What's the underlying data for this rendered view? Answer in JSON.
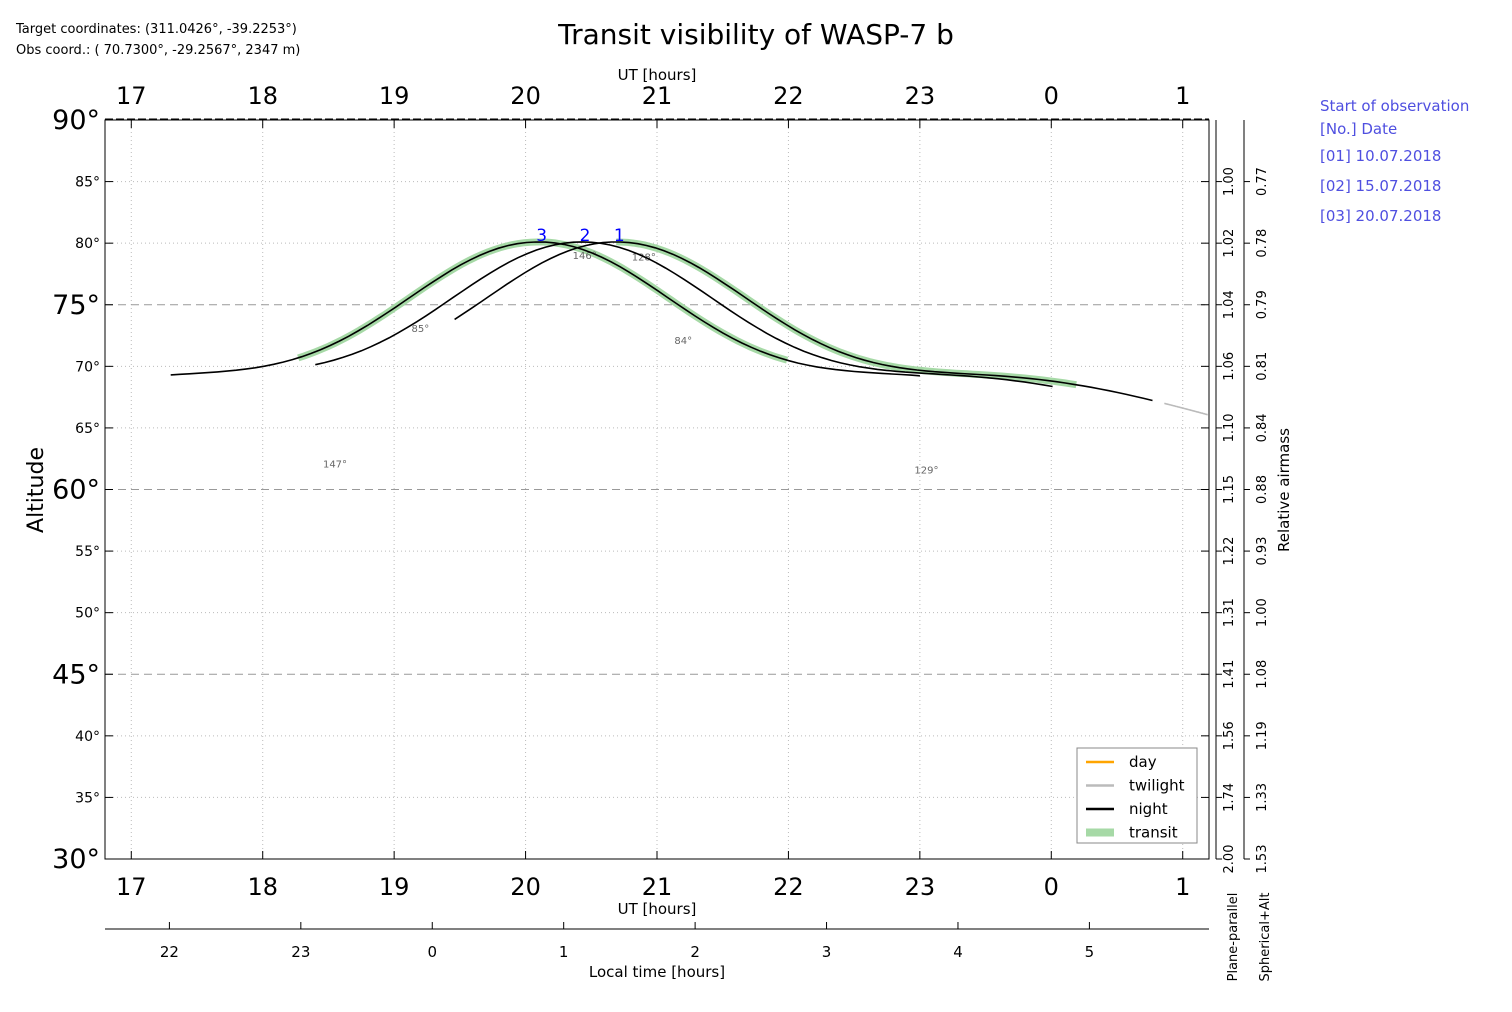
{
  "header": {
    "target_coordinates": "Target coordinates: (311.0426°, -39.2253°)",
    "observatory_coordinates": "Obs coord.: ( 70.7300°, -29.2567°, 2347 m)"
  },
  "observation_list": {
    "title": "Start of observation",
    "column_header": "[No.]  Date",
    "entries": [
      {
        "no": "1",
        "label": "[01]  10.07.2018"
      },
      {
        "no": "2",
        "label": "[02]  15.07.2018"
      },
      {
        "no": "3",
        "label": "[03]  20.07.2018"
      }
    ]
  },
  "colors": {
    "day": "#ffa500",
    "twilight": "#bbbbbb",
    "night": "#000000",
    "transit": "#a6d9a6",
    "number_labels": "#0000ff",
    "observation_list": "#4f4fe0"
  },
  "chart_data": {
    "type": "line",
    "title": "Transit visibility of WASP-7 b",
    "ylabel": "Altitude",
    "ylabel_right": "Relative airmass",
    "xlabel_top": "UT [hours]",
    "xlabel_bottom": "UT [hours]",
    "xlabel_local": "Local time [hours]",
    "ylim": [
      30,
      90
    ],
    "xlim_ut": [
      16.8,
      25.2
    ],
    "ut_ticks": [
      {
        "v": 17,
        "label": "17"
      },
      {
        "v": 18,
        "label": "18"
      },
      {
        "v": 19,
        "label": "19"
      },
      {
        "v": 20,
        "label": "20"
      },
      {
        "v": 21,
        "label": "21"
      },
      {
        "v": 22,
        "label": "22"
      },
      {
        "v": 23,
        "label": "23"
      },
      {
        "v": 24,
        "label": "0"
      },
      {
        "v": 25,
        "label": "1"
      }
    ],
    "local_ticks": [
      {
        "v": 17.29,
        "label": "22"
      },
      {
        "v": 18.29,
        "label": "23"
      },
      {
        "v": 19.29,
        "label": "0"
      },
      {
        "v": 20.29,
        "label": "1"
      },
      {
        "v": 21.29,
        "label": "2"
      },
      {
        "v": 22.29,
        "label": "3"
      },
      {
        "v": 23.29,
        "label": "4"
      },
      {
        "v": 24.29,
        "label": "5"
      }
    ],
    "y_ticks": [
      {
        "v": 90,
        "label": "90°",
        "major": true
      },
      {
        "v": 85,
        "label": "85°",
        "major": false
      },
      {
        "v": 80,
        "label": "80°",
        "major": false
      },
      {
        "v": 75,
        "label": "75°",
        "major": true
      },
      {
        "v": 70,
        "label": "70°",
        "major": false
      },
      {
        "v": 65,
        "label": "65°",
        "major": false
      },
      {
        "v": 60,
        "label": "60°",
        "major": true
      },
      {
        "v": 55,
        "label": "55°",
        "major": false
      },
      {
        "v": 50,
        "label": "50°",
        "major": false
      },
      {
        "v": 45,
        "label": "45°",
        "major": true
      },
      {
        "v": 40,
        "label": "40°",
        "major": false
      },
      {
        "v": 35,
        "label": "35°",
        "major": false
      },
      {
        "v": 30,
        "label": "30°",
        "major": true
      }
    ],
    "airmass_plane_parallel": [
      {
        "alt": 85,
        "label": "1.00"
      },
      {
        "alt": 80,
        "label": "1.02"
      },
      {
        "alt": 75,
        "label": "1.04"
      },
      {
        "alt": 70,
        "label": "1.06"
      },
      {
        "alt": 65,
        "label": "1.10"
      },
      {
        "alt": 60,
        "label": "1.15"
      },
      {
        "alt": 55,
        "label": "1.22"
      },
      {
        "alt": 50,
        "label": "1.31"
      },
      {
        "alt": 45,
        "label": "1.41"
      },
      {
        "alt": 40,
        "label": "1.56"
      },
      {
        "alt": 35,
        "label": "1.74"
      },
      {
        "alt": 30,
        "label": "2.00"
      }
    ],
    "airmass_spherical_alt": [
      {
        "alt": 85,
        "label": "0.77"
      },
      {
        "alt": 80,
        "label": "0.78"
      },
      {
        "alt": 75,
        "label": "0.79"
      },
      {
        "alt": 70,
        "label": "0.81"
      },
      {
        "alt": 65,
        "label": "0.84"
      },
      {
        "alt": 60,
        "label": "0.88"
      },
      {
        "alt": 55,
        "label": "0.93"
      },
      {
        "alt": 50,
        "label": "1.00"
      },
      {
        "alt": 45,
        "label": "1.08"
      },
      {
        "alt": 40,
        "label": "1.19"
      },
      {
        "alt": 35,
        "label": "1.33"
      },
      {
        "alt": 30,
        "label": "1.53"
      }
    ],
    "airmass_axis_labels": {
      "plane_parallel": "Plane-parallel",
      "spherical_alt": "Spherical+Alt"
    },
    "legend": {
      "position": "bottom-right",
      "entries": [
        {
          "key": "day",
          "label": "day"
        },
        {
          "key": "twilight",
          "label": "twilight"
        },
        {
          "key": "night",
          "label": "night"
        },
        {
          "key": "transit",
          "label": "transit"
        }
      ]
    },
    "grid": true,
    "curve_model": {
      "peak_alt": 80.1
    },
    "series": [
      {
        "no": "1",
        "culmination_ut": 20.69,
        "night_ut": [
          19.46,
          24.77
        ],
        "twilight_ut": [
          24.86,
          25.19
        ],
        "transit_ut": [
          20.69,
          24.19
        ],
        "azimuth_labels": [
          {
            "ut": 20.9,
            "alt": 78.6,
            "label": "128°"
          },
          {
            "ut": 23.05,
            "alt": 61.3,
            "label": "129°"
          }
        ]
      },
      {
        "no": "2",
        "culmination_ut": 20.43,
        "night_ut": [
          18.4,
          24.01
        ],
        "twilight_ut": [],
        "transit_ut": [],
        "azimuth_labels": [
          {
            "ut": 20.45,
            "alt": 78.7,
            "label": "146°"
          },
          {
            "ut": 18.55,
            "alt": 61.8,
            "label": "147°"
          }
        ]
      },
      {
        "no": "3",
        "culmination_ut": 20.1,
        "night_ut": [
          17.3,
          23.0
        ],
        "twilight_ut": [],
        "transit_ut": [
          18.27,
          21.99
        ],
        "azimuth_labels": [
          {
            "ut": 19.2,
            "alt": 72.8,
            "label": "85°"
          },
          {
            "ut": 21.2,
            "alt": 71.8,
            "label": "84°"
          }
        ]
      }
    ]
  }
}
